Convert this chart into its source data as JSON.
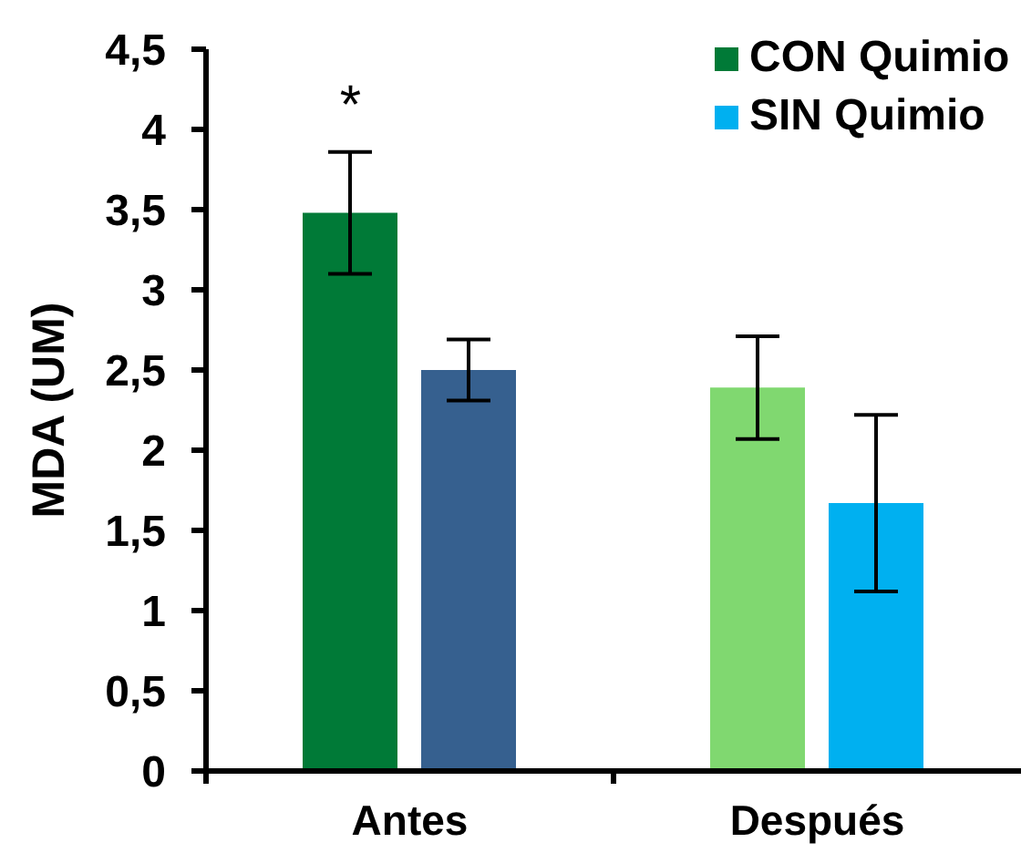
{
  "chart_data": {
    "type": "bar",
    "ylabel": "MDA (UM)",
    "categories": [
      "Antes",
      "Después"
    ],
    "series": [
      {
        "name": "CON Quimio",
        "color": "#007a37",
        "colors": [
          "#007a37",
          "#80d870"
        ],
        "values": [
          3.48,
          2.39
        ],
        "errors": [
          0.38,
          0.32
        ]
      },
      {
        "name": "SIN Quimio",
        "color": "#00b0f0",
        "colors": [
          "#36608f",
          "#00b0f0"
        ],
        "values": [
          2.5,
          1.67
        ],
        "errors": [
          0.19,
          0.55
        ]
      }
    ],
    "ylim": [
      0,
      4.5
    ],
    "yticks": [
      0,
      {
        "value": 0.5,
        "label": "0,5"
      },
      1,
      {
        "value": 1.5,
        "label": "1,5"
      },
      2,
      {
        "value": 2.5,
        "label": "2,5"
      },
      3,
      {
        "value": 3.5,
        "label": "3,5"
      },
      4,
      {
        "value": 4.5,
        "label": "4,5"
      }
    ],
    "grid": false,
    "legend": "top right",
    "annotations": [
      "*"
    ]
  }
}
